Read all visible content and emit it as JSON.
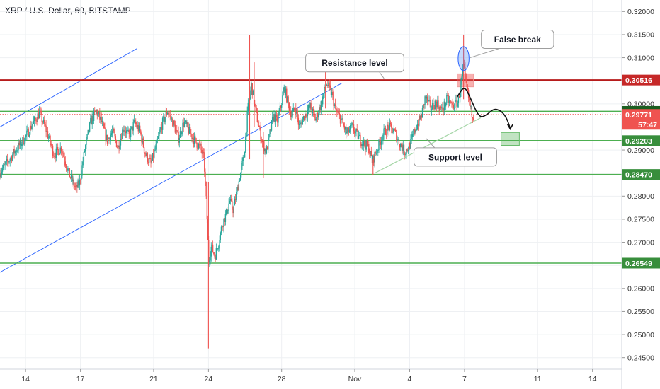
{
  "header": {
    "title": "XRP / U.S. Dollar, 60, BITSTAMP"
  },
  "colors": {
    "up": "#26a69a",
    "down": "#ef5350",
    "resistance": "#b71c1c",
    "support": "#4caf50",
    "channel": "#2962ff",
    "tag_red": "#c62828",
    "tag_green": "#388e3c",
    "tag_dark_green": "#1b5e20",
    "tag_price": "#ef5350",
    "grid": "#eef0f3"
  },
  "chart_data": {
    "type": "candlestick",
    "symbol": "XRP / U.S. Dollar",
    "interval": "60",
    "exchange": "BITSTAMP",
    "ylim": [
      0.2425,
      0.3225
    ],
    "y_ticks": [
      "0.32000",
      "0.31500",
      "0.31000",
      "0.30500",
      "0.30000",
      "0.29500",
      "0.29000",
      "0.28500",
      "0.28000",
      "0.27500",
      "0.27000",
      "0.26500",
      "0.26000",
      "0.25500",
      "0.25000",
      "0.24500"
    ],
    "x_ticks": [
      {
        "label": "14",
        "day": 14
      },
      {
        "label": "17",
        "day": 17
      },
      {
        "label": "21",
        "day": 21
      },
      {
        "label": "24",
        "day": 24
      },
      {
        "label": "28",
        "day": 28
      },
      {
        "label": "Nov",
        "day": 32
      },
      {
        "label": "4",
        "day": 35
      },
      {
        "label": "7",
        "day": 38
      },
      {
        "label": "11",
        "day": 42
      },
      {
        "label": "14",
        "day": 45
      }
    ],
    "horizontal_levels": [
      {
        "price": 0.30516,
        "label": "0.30516",
        "kind": "resistance"
      },
      {
        "price": 0.29837,
        "label": "0.29837",
        "kind": "support"
      },
      {
        "price": 0.29203,
        "label": "0.29203",
        "kind": "support"
      },
      {
        "price": 0.2847,
        "label": "0.28470",
        "kind": "support"
      },
      {
        "price": 0.26549,
        "label": "0.26549",
        "kind": "support"
      }
    ],
    "current_price": {
      "price": 0.29771,
      "label": "0.29771",
      "countdown": "57:47"
    },
    "price_path": [
      [
        12.6,
        0.285
      ],
      [
        13.0,
        0.287
      ],
      [
        13.5,
        0.29
      ],
      [
        14.0,
        0.2925
      ],
      [
        14.4,
        0.2955
      ],
      [
        14.8,
        0.298
      ],
      [
        15.2,
        0.294
      ],
      [
        15.6,
        0.289
      ],
      [
        16.0,
        0.2905
      ],
      [
        16.4,
        0.285
      ],
      [
        16.8,
        0.2815
      ],
      [
        17.0,
        0.283
      ],
      [
        17.3,
        0.2905
      ],
      [
        17.6,
        0.296
      ],
      [
        17.9,
        0.2985
      ],
      [
        18.2,
        0.296
      ],
      [
        18.5,
        0.292
      ],
      [
        18.8,
        0.294
      ],
      [
        19.1,
        0.2905
      ],
      [
        19.4,
        0.295
      ],
      [
        19.7,
        0.293
      ],
      [
        20.0,
        0.296
      ],
      [
        20.3,
        0.294
      ],
      [
        20.6,
        0.289
      ],
      [
        20.9,
        0.287
      ],
      [
        21.2,
        0.291
      ],
      [
        21.5,
        0.2955
      ],
      [
        21.8,
        0.2985
      ],
      [
        22.1,
        0.296
      ],
      [
        22.4,
        0.2925
      ],
      [
        22.7,
        0.296
      ],
      [
        23.0,
        0.294
      ],
      [
        23.3,
        0.292
      ],
      [
        23.6,
        0.2905
      ],
      [
        23.8,
        0.288
      ],
      [
        23.95,
        0.277
      ],
      [
        24.05,
        0.266
      ],
      [
        24.2,
        0.269
      ],
      [
        24.4,
        0.267
      ],
      [
        24.6,
        0.27
      ],
      [
        24.8,
        0.274
      ],
      [
        25.0,
        0.276
      ],
      [
        25.2,
        0.279
      ],
      [
        25.4,
        0.277
      ],
      [
        25.6,
        0.281
      ],
      [
        25.8,
        0.285
      ],
      [
        26.0,
        0.289
      ],
      [
        26.2,
        0.299
      ],
      [
        26.4,
        0.304
      ],
      [
        26.6,
        0.299
      ],
      [
        26.8,
        0.295
      ],
      [
        27.0,
        0.2915
      ],
      [
        27.2,
        0.2895
      ],
      [
        27.4,
        0.2935
      ],
      [
        27.6,
        0.2975
      ],
      [
        27.8,
        0.296
      ],
      [
        28.0,
        0.2995
      ],
      [
        28.2,
        0.3035
      ],
      [
        28.4,
        0.3
      ],
      [
        28.6,
        0.2975
      ],
      [
        28.8,
        0.2995
      ],
      [
        29.0,
        0.295
      ],
      [
        29.3,
        0.2975
      ],
      [
        29.6,
        0.2995
      ],
      [
        29.9,
        0.2965
      ],
      [
        30.2,
        0.3
      ],
      [
        30.5,
        0.3045
      ],
      [
        30.8,
        0.302
      ],
      [
        31.0,
        0.2985
      ],
      [
        31.3,
        0.2965
      ],
      [
        31.6,
        0.2935
      ],
      [
        31.9,
        0.295
      ],
      [
        32.2,
        0.293
      ],
      [
        32.5,
        0.2915
      ],
      [
        32.8,
        0.2905
      ],
      [
        33.0,
        0.2875
      ],
      [
        33.3,
        0.2905
      ],
      [
        33.6,
        0.2935
      ],
      [
        33.9,
        0.295
      ],
      [
        34.2,
        0.294
      ],
      [
        34.5,
        0.2915
      ],
      [
        34.8,
        0.2895
      ],
      [
        35.1,
        0.2915
      ],
      [
        35.4,
        0.295
      ],
      [
        35.7,
        0.2975
      ],
      [
        35.9,
        0.3015
      ],
      [
        36.2,
        0.299
      ],
      [
        36.5,
        0.3005
      ],
      [
        36.8,
        0.2985
      ],
      [
        37.1,
        0.301
      ],
      [
        37.4,
        0.2995
      ],
      [
        37.7,
        0.3005
      ],
      [
        37.9,
        0.3055
      ],
      [
        38.0,
        0.308
      ],
      [
        38.1,
        0.305
      ],
      [
        38.25,
        0.3015
      ],
      [
        38.4,
        0.2985
      ],
      [
        38.5,
        0.2977
      ]
    ],
    "spikes": [
      {
        "day": 24.0,
        "high": 0.283,
        "low": 0.247
      },
      {
        "day": 26.25,
        "high": 0.315,
        "low": 0.288
      },
      {
        "day": 26.5,
        "high": 0.309,
        "low": 0.295
      },
      {
        "day": 30.4,
        "high": 0.309,
        "low": 0.299
      },
      {
        "day": 37.95,
        "high": 0.315,
        "low": 0.301
      },
      {
        "day": 33.0,
        "high": 0.288,
        "low": 0.2845
      },
      {
        "day": 27.0,
        "high": 0.294,
        "low": 0.284
      }
    ],
    "channel_lines": [
      {
        "from": [
          12.6,
          0.295
        ],
        "to": [
          20.1,
          0.312
        ]
      },
      {
        "from": [
          12.6,
          0.2635
        ],
        "to": [
          31.3,
          0.3045
        ]
      }
    ],
    "trend_lines": [
      {
        "from": [
          33.1,
          0.285
        ],
        "to": [
          38.9,
          0.297
        ]
      }
    ],
    "ovals": [
      {
        "center": [
          37.95,
          0.3098
        ],
        "rx_days": 0.3,
        "ry_price": 0.0026
      }
    ],
    "zones": [
      {
        "day_from": 37.6,
        "day_to": 38.5,
        "price_from": 0.3037,
        "price_to": 0.3065,
        "kind": "resistance"
      },
      {
        "day_from": 40.0,
        "day_to": 41.0,
        "price_from": 0.291,
        "price_to": 0.2938,
        "kind": "support"
      }
    ],
    "projection_path": [
      [
        37.6,
        0.3015
      ],
      [
        38.0,
        0.304
      ],
      [
        38.35,
        0.301
      ],
      [
        38.8,
        0.297
      ],
      [
        39.2,
        0.2975
      ],
      [
        39.6,
        0.299
      ],
      [
        40.0,
        0.2985
      ],
      [
        40.3,
        0.297
      ],
      [
        40.5,
        0.2947
      ]
    ],
    "callouts": [
      {
        "text": "Resistance level",
        "box_center": [
          32.0,
          0.3089
        ],
        "pointer_to": [
          33.6,
          0.3055
        ]
      },
      {
        "text": "False break",
        "box_center": [
          40.9,
          0.314
        ],
        "pointer_to": [
          38.3,
          0.31
        ]
      },
      {
        "text": "Support level",
        "box_center": [
          37.5,
          0.2885
        ],
        "pointer_to": [
          35.9,
          0.2925
        ]
      }
    ]
  }
}
